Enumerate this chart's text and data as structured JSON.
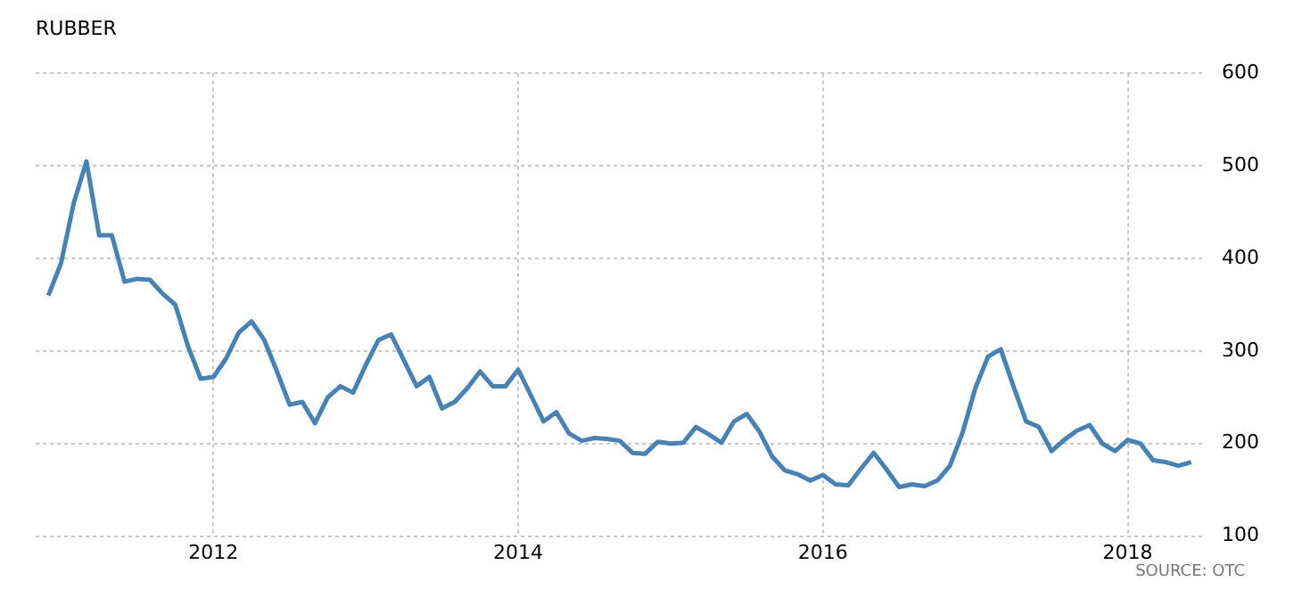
{
  "chart_data": {
    "type": "line",
    "title": "RUBBER",
    "x": [
      "2010-12",
      "2011-01",
      "2011-02",
      "2011-03",
      "2011-04",
      "2011-05",
      "2011-06",
      "2011-07",
      "2011-08",
      "2011-09",
      "2011-10",
      "2011-11",
      "2011-12",
      "2012-01",
      "2012-02",
      "2012-03",
      "2012-04",
      "2012-05",
      "2012-06",
      "2012-07",
      "2012-08",
      "2012-09",
      "2012-10",
      "2012-11",
      "2012-12",
      "2013-01",
      "2013-02",
      "2013-03",
      "2013-04",
      "2013-05",
      "2013-06",
      "2013-07",
      "2013-08",
      "2013-09",
      "2013-10",
      "2013-11",
      "2013-12",
      "2014-01",
      "2014-02",
      "2014-03",
      "2014-04",
      "2014-05",
      "2014-06",
      "2014-07",
      "2014-08",
      "2014-09",
      "2014-10",
      "2014-11",
      "2014-12",
      "2015-01",
      "2015-02",
      "2015-03",
      "2015-04",
      "2015-05",
      "2015-06",
      "2015-07",
      "2015-08",
      "2015-09",
      "2015-10",
      "2015-11",
      "2015-12",
      "2016-01",
      "2016-02",
      "2016-03",
      "2016-04",
      "2016-05",
      "2016-06",
      "2016-07",
      "2016-08",
      "2016-09",
      "2016-10",
      "2016-11",
      "2016-12",
      "2017-01",
      "2017-02",
      "2017-03",
      "2017-04",
      "2017-05",
      "2017-06",
      "2017-07",
      "2017-08",
      "2017-09",
      "2017-10",
      "2017-11",
      "2017-12",
      "2018-01",
      "2018-02",
      "2018-03",
      "2018-04",
      "2018-05",
      "2018-06"
    ],
    "series": [
      {
        "color": "#4682b4",
        "values": [
          360,
          395,
          460,
          505,
          425,
          425,
          375,
          378,
          377,
          362,
          350,
          305,
          270,
          272,
          292,
          320,
          332,
          312,
          278,
          242,
          245,
          222,
          250,
          262,
          255,
          285,
          312,
          318,
          290,
          262,
          272,
          238,
          245,
          260,
          278,
          262,
          262,
          280,
          252,
          224,
          234,
          211,
          203,
          206,
          205,
          203,
          190,
          189,
          202,
          200,
          201,
          218,
          210,
          201,
          224,
          232,
          213,
          186,
          171,
          167,
          160,
          166,
          156,
          155,
          173,
          190,
          172,
          153,
          156,
          154,
          160,
          176,
          212,
          260,
          294,
          302,
          262,
          224,
          218,
          192,
          204,
          214,
          220,
          200,
          192,
          204,
          200,
          182,
          180,
          176,
          180
        ]
      }
    ],
    "xlim": [
      "2010-11",
      "2018-07"
    ],
    "xticks": [
      "2012",
      "2014",
      "2016",
      "2018"
    ],
    "ylim": [
      100,
      600
    ],
    "yticks": [
      100,
      200,
      300,
      400,
      500,
      600
    ],
    "grid": true,
    "legend": false,
    "marker": "none",
    "line_style": "solid",
    "annotations": [
      "SOURCE: OTC"
    ]
  }
}
